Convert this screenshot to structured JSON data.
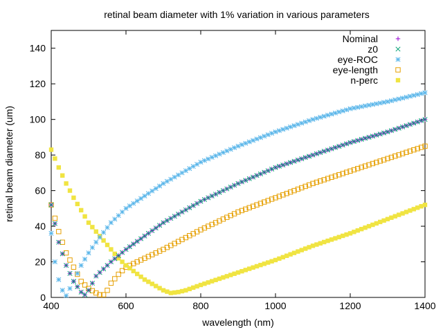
{
  "chart_data": {
    "type": "scatter",
    "title": "retinal beam diameter with 1% variation in various parameters",
    "xlabel": "wavelength (nm)",
    "ylabel": "retinal beam diameter (um)",
    "xlim": [
      400,
      1400
    ],
    "ylim": [
      0,
      150
    ],
    "x_ticks": [
      400,
      600,
      800,
      1000,
      1200,
      1400
    ],
    "y_ticks": [
      0,
      20,
      40,
      60,
      80,
      100,
      120,
      140
    ],
    "grid": false,
    "legend_position": "top-right",
    "series": [
      {
        "name": "Nominal",
        "color": "#9400d3",
        "marker": "plus",
        "x": [
          400,
          420,
          440,
          460,
          480,
          490,
          500,
          520,
          560,
          600,
          700,
          800,
          900,
          1000,
          1100,
          1200,
          1300,
          1400
        ],
        "y": [
          52,
          31,
          18,
          9,
          3,
          1.5,
          4,
          12,
          20,
          27,
          42,
          54,
          64,
          73,
          80,
          87,
          93,
          100
        ]
      },
      {
        "name": "z0",
        "color": "#009e73",
        "marker": "cross",
        "x": [
          400,
          420,
          440,
          460,
          480,
          490,
          500,
          520,
          560,
          600,
          700,
          800,
          900,
          1000,
          1100,
          1200,
          1300,
          1400
        ],
        "y": [
          52,
          31,
          18,
          9,
          3,
          1.5,
          4,
          12,
          20,
          27,
          42,
          54,
          64,
          73,
          80,
          87,
          93,
          100
        ]
      },
      {
        "name": "eye-ROC",
        "color": "#56b4e9",
        "marker": "star",
        "x": [
          400,
          410,
          420,
          430,
          440,
          450,
          460,
          480,
          500,
          520,
          560,
          600,
          700,
          800,
          900,
          1000,
          1100,
          1200,
          1300,
          1400
        ],
        "y": [
          36,
          20,
          10,
          4,
          1,
          5,
          9,
          18,
          25,
          31,
          42,
          50,
          64,
          76,
          85,
          93,
          100,
          106,
          110,
          115
        ]
      },
      {
        "name": "eye-length",
        "color": "#e69f00",
        "marker": "box",
        "x": [
          400,
          420,
          440,
          460,
          480,
          500,
          520,
          530,
          540,
          550,
          560,
          580,
          600,
          700,
          800,
          900,
          1000,
          1100,
          1200,
          1300,
          1400
        ],
        "y": [
          52,
          37,
          25,
          17,
          9,
          5,
          2.5,
          1.5,
          1.5,
          4,
          8,
          13,
          17,
          27,
          38,
          48,
          56,
          64,
          71,
          78,
          85
        ]
      },
      {
        "name": "n-perc",
        "color": "#f0e442",
        "marker": "filled-box",
        "x": [
          400,
          420,
          440,
          460,
          480,
          500,
          520,
          540,
          560,
          580,
          600,
          650,
          700,
          720,
          740,
          760,
          800,
          900,
          1000,
          1100,
          1200,
          1300,
          1400
        ],
        "y": [
          83,
          73,
          64,
          56,
          49,
          42,
          37,
          32,
          27,
          22,
          18,
          10,
          4,
          2.5,
          3,
          4,
          7,
          14,
          21,
          29,
          36,
          44,
          52
        ]
      }
    ]
  }
}
